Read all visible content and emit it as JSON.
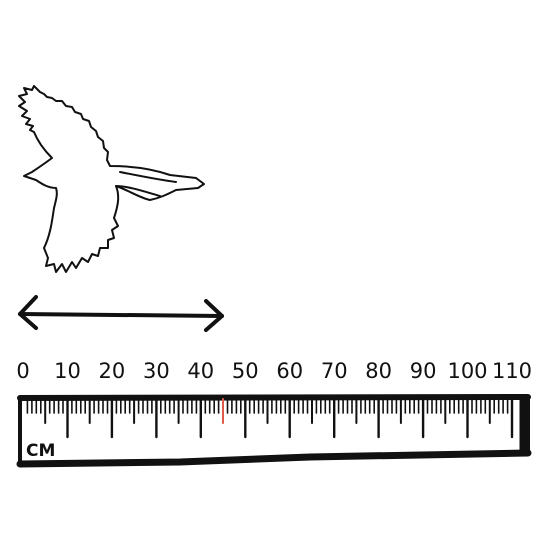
{
  "scene": {
    "subject": "bird-silhouette",
    "measure_arrow": "wingspan-arrow"
  },
  "ruler": {
    "unit": "CM",
    "min": 0,
    "max": 110,
    "label_step": 10,
    "labels": [
      "0",
      "10",
      "20",
      "30",
      "40",
      "50",
      "60",
      "70",
      "80",
      "90",
      "100",
      "110"
    ],
    "highlight_tick_value": 45,
    "colors": {
      "ink": "#111111",
      "highlight": "#e05a4a",
      "background": "#ffffff"
    }
  }
}
